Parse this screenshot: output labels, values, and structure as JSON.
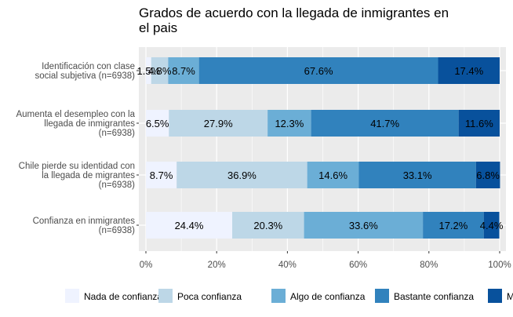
{
  "chart_data": {
    "type": "bar",
    "orientation": "horizontal",
    "stacked": "percent",
    "title": "Grados de acuerdo con la llegada de inmigrantes en el pais",
    "title_lines": [
      "Grados de acuerdo con la llegada de inmigrantes en",
      "el pais"
    ],
    "xlabel": "",
    "ylabel": "",
    "xlim": [
      0,
      100
    ],
    "x_ticks": [
      "0%",
      "20%",
      "40%",
      "60%",
      "80%",
      "100%"
    ],
    "grid": true,
    "legend_position": "bottom",
    "categories": [
      {
        "lines": [
          "Identificación con clase",
          "social subjetiva (n=6938)"
        ]
      },
      {
        "lines": [
          "Aumenta el desempleo con la",
          "llegada de inmigrantes",
          "(n=6938)"
        ]
      },
      {
        "lines": [
          "Chile pierde su identidad con",
          "la llegada de migrantes",
          "(n=6938)"
        ]
      },
      {
        "lines": [
          "Confianza en inmigrantes",
          "(n=6938)"
        ]
      }
    ],
    "series": [
      {
        "name": "Nada de confianza",
        "color": "#eff3ff",
        "values": [
          1.5,
          6.5,
          8.7,
          24.4
        ],
        "labels": [
          "1.5%",
          "6.5%",
          "8.7%",
          "24.4%"
        ]
      },
      {
        "name": "Poca confianza",
        "color": "#bdd7e7",
        "values": [
          4.8,
          27.9,
          36.9,
          20.3
        ],
        "labels": [
          "4.8%",
          "27.9%",
          "36.9%",
          "20.3%"
        ]
      },
      {
        "name": "Algo de confianza",
        "color": "#6baed6",
        "values": [
          8.7,
          12.3,
          14.6,
          33.6
        ],
        "labels": [
          "8.7%",
          "12.3%",
          "14.6%",
          "33.6%"
        ]
      },
      {
        "name": "Bastante confianza",
        "color": "#3182bd",
        "values": [
          67.6,
          41.7,
          33.1,
          17.2
        ],
        "labels": [
          "67.6%",
          "41.7%",
          "33.1%",
          "17.2%"
        ]
      },
      {
        "name": "M",
        "color": "#08519c",
        "values": [
          17.4,
          11.6,
          6.8,
          4.4
        ],
        "labels": [
          "17.4%",
          "11.6%",
          "6.8%",
          "4.4%"
        ]
      }
    ]
  }
}
